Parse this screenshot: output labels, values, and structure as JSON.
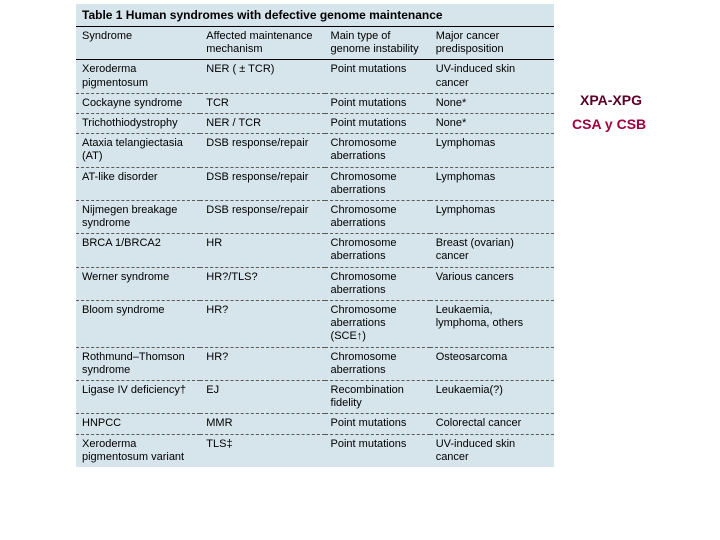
{
  "table": {
    "title": "Table 1 Human syndromes with defective genome maintenance",
    "background_color": "#d6e4ec",
    "columns": [
      "Syndrome",
      "Affected maintenance mechanism",
      "Main type of genome instability",
      "Major cancer predisposition"
    ],
    "column_widths_pct": [
      26,
      26,
      22,
      26
    ],
    "rows": [
      [
        "Xeroderma pigmentosum",
        "NER ( ± TCR)",
        "Point mutations",
        "UV-induced skin cancer"
      ],
      [
        "Cockayne syndrome",
        "TCR",
        "Point mutations",
        "None*"
      ],
      [
        "Trichothiodystrophy",
        "NER / TCR",
        "Point mutations",
        "None*"
      ],
      [
        "Ataxia telangiectasia (AT)",
        "DSB response/repair",
        "Chromosome aberrations",
        "Lymphomas"
      ],
      [
        "AT-like disorder",
        "DSB response/repair",
        "Chromosome aberrations",
        "Lymphomas"
      ],
      [
        "Nijmegen breakage syndrome",
        "DSB response/repair",
        "Chromosome aberrations",
        "Lymphomas"
      ],
      [
        "BRCA 1/BRCA2",
        "HR",
        "Chromosome aberrations",
        "Breast (ovarian) cancer"
      ],
      [
        "Werner syndrome",
        "HR?/TLS?",
        "Chromosome aberrations",
        "Various cancers"
      ],
      [
        "Bloom syndrome",
        "HR?",
        "Chromosome aberrations (SCE↑)",
        "Leukaemia, lymphoma, others"
      ],
      [
        "Rothmund–Thomson syndrome",
        "HR?",
        "Chromosome aberrations",
        "Osteosarcoma"
      ],
      [
        "Ligase IV deficiency†",
        "EJ",
        "Recombination fidelity",
        "Leukaemia(?)"
      ],
      [
        "HNPCC",
        "MMR",
        "Point mutations",
        "Colorectal cancer"
      ],
      [
        "Xeroderma pigmentosum variant",
        "TLS‡",
        "Point mutations",
        "UV-induced skin cancer"
      ]
    ]
  },
  "annotations": {
    "a1": "XPA-XPG",
    "a2": "CSA y CSB"
  },
  "annotation_colors": {
    "a1": "#5a002a",
    "a2": "#a00040"
  }
}
